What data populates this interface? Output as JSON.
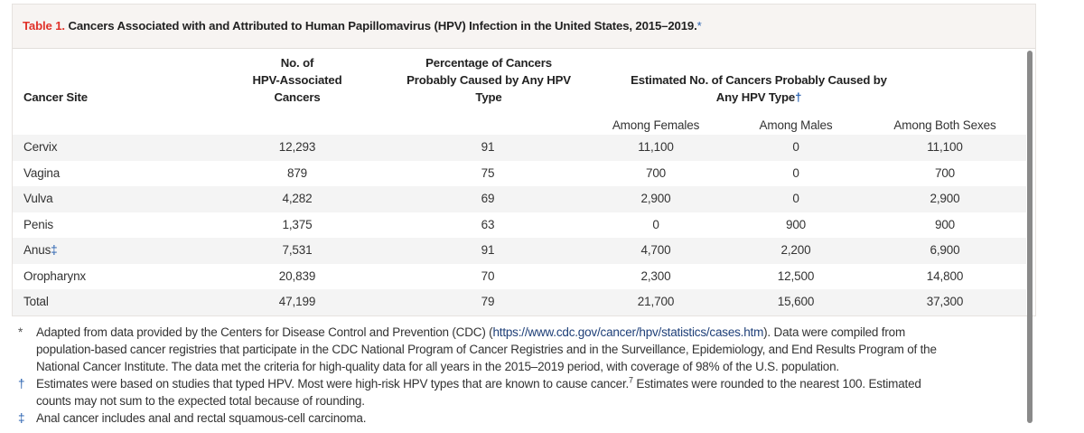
{
  "title": {
    "label": "Table 1.",
    "text": " Cancers Associated with and Attributed to Human Papillomavirus (HPV) Infection in the United States, 2015–2019.",
    "mark": "*"
  },
  "headers": {
    "site": "Cancer Site",
    "associated": [
      "No. of",
      "HPV-Associated",
      "Cancers"
    ],
    "percentage": [
      "Percentage of Cancers",
      "Probably Caused by Any HPV",
      "Type"
    ],
    "estimated": [
      "Estimated No. of Cancers Probably Caused by",
      "Any HPV Type"
    ],
    "estimated_mark": "†",
    "sub": [
      "Among Females",
      "Among Males",
      "Among Both Sexes"
    ]
  },
  "rows": [
    {
      "site": "Cervix",
      "mark": "",
      "associated": "12,293",
      "pct": "91",
      "females": "11,100",
      "males": "0",
      "both": "11,100"
    },
    {
      "site": "Vagina",
      "mark": "",
      "associated": "879",
      "pct": "75",
      "females": "700",
      "males": "0",
      "both": "700"
    },
    {
      "site": "Vulva",
      "mark": "",
      "associated": "4,282",
      "pct": "69",
      "females": "2,900",
      "males": "0",
      "both": "2,900"
    },
    {
      "site": "Penis",
      "mark": "",
      "associated": "1,375",
      "pct": "63",
      "females": "0",
      "males": "900",
      "both": "900"
    },
    {
      "site": "Anus",
      "mark": "‡",
      "associated": "7,531",
      "pct": "91",
      "females": "4,700",
      "males": "2,200",
      "both": "6,900"
    },
    {
      "site": "Oropharynx",
      "mark": "",
      "associated": "20,839",
      "pct": "70",
      "females": "2,300",
      "males": "12,500",
      "both": "14,800"
    },
    {
      "site": "Total",
      "mark": "",
      "associated": "47,199",
      "pct": "79",
      "females": "21,700",
      "males": "15,600",
      "both": "37,300"
    }
  ],
  "footnotes": {
    "star": {
      "symbol": "*",
      "line1_pre": "Adapted from data provided by the Centers for Disease Control and Prevention (CDC) (",
      "link": "https://www.cdc.gov/cancer/hpv/statistics/cases.htm",
      "line1_post": "). Data were compiled from",
      "line2": "population-based cancer registries that participate in the CDC National Program of Cancer Registries and in the Surveillance, Epidemiology, and End Results Program of the",
      "line3": "National Cancer Institute. The data met the criteria for high-quality data for all years in the 2015–2019 period, with coverage of 98% of the U.S. population."
    },
    "dagger": {
      "symbol": "†",
      "line1_pre": "Estimates were based on studies that typed HPV. Most were high-risk HPV types that are known to cause cancer.",
      "ref": "7",
      "line1_post": " Estimates were rounded to the nearest 100. Estimated",
      "line2": "counts may not sum to the expected total because of rounding."
    },
    "ddagger": {
      "symbol": "‡",
      "line1": "Anal cancer includes anal and rectal squamous-cell carcinoma."
    }
  },
  "colors": {
    "label": "#e0322a",
    "mark": "#2a62b0",
    "title_band": "#f7f4f2",
    "stripe": "#f4f4f4"
  }
}
